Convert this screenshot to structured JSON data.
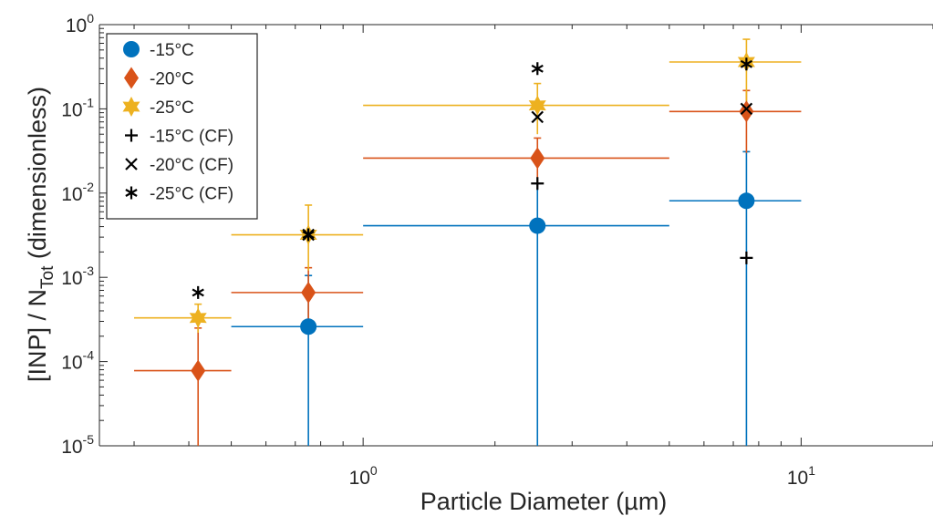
{
  "chart_data": {
    "type": "scatter",
    "xlabel": "Particle Diameter (µm)",
    "ylabel_main": "[INP] / N",
    "ylabel_sub": "Tot",
    "ylabel_tail": " (dimensionless)",
    "x_scale": "log",
    "y_scale": "log",
    "xlim": [
      0.25,
      20
    ],
    "ylim": [
      1e-05,
      1
    ],
    "x_ticks": [
      {
        "value": 1,
        "base": "10",
        "exp": "0"
      },
      {
        "value": 10,
        "base": "10",
        "exp": "1"
      }
    ],
    "y_ticks": [
      {
        "value": 1e-05,
        "base": "10",
        "exp": "-5"
      },
      {
        "value": 0.0001,
        "base": "10",
        "exp": "-4"
      },
      {
        "value": 0.001,
        "base": "10",
        "exp": "-3"
      },
      {
        "value": 0.01,
        "base": "10",
        "exp": "-2"
      },
      {
        "value": 0.1,
        "base": "10",
        "exp": "-1"
      },
      {
        "value": 1,
        "base": "10",
        "exp": "0"
      }
    ],
    "grid": false,
    "legend_position": "top-left",
    "series": [
      {
        "name": "-15°C",
        "marker": "circle",
        "color": "#0072BD",
        "points": [
          {
            "x": 0.75,
            "y": 0.00026,
            "x_err": [
              0.5,
              1.0
            ],
            "y_err": [
              1e-05,
              0.00105
            ]
          },
          {
            "x": 2.5,
            "y": 0.0041,
            "x_err": [
              1.0,
              5.0
            ],
            "y_err": [
              1e-05,
              0.013
            ]
          },
          {
            "x": 7.5,
            "y": 0.0081,
            "x_err": [
              5.0,
              10.0
            ],
            "y_err": [
              1e-05,
              0.031
            ]
          }
        ]
      },
      {
        "name": "-20°C",
        "marker": "diamond",
        "color": "#D95319",
        "points": [
          {
            "x": 0.42,
            "y": 7.8e-05,
            "x_err": [
              0.3,
              0.5
            ],
            "y_err": [
              1e-05,
              0.00025
            ]
          },
          {
            "x": 0.75,
            "y": 0.00066,
            "x_err": [
              0.5,
              1.0
            ],
            "y_err": [
              0.00026,
              0.0013
            ]
          },
          {
            "x": 2.5,
            "y": 0.026,
            "x_err": [
              1.0,
              5.0
            ],
            "y_err": [
              0.012,
              0.045
            ]
          },
          {
            "x": 7.5,
            "y": 0.093,
            "x_err": [
              5.0,
              10.0
            ],
            "y_err": [
              0.03,
              0.165
            ]
          }
        ]
      },
      {
        "name": "-25°C",
        "marker": "hexagram",
        "color": "#EDB120",
        "points": [
          {
            "x": 0.42,
            "y": 0.00033,
            "x_err": [
              0.3,
              0.5
            ],
            "y_err": [
              0.00022,
              0.00048
            ]
          },
          {
            "x": 0.75,
            "y": 0.0032,
            "x_err": [
              0.5,
              1.0
            ],
            "y_err": [
              0.0012,
              0.0072
            ]
          },
          {
            "x": 2.5,
            "y": 0.11,
            "x_err": [
              1.0,
              5.0
            ],
            "y_err": [
              0.05,
              0.2
            ]
          },
          {
            "x": 7.5,
            "y": 0.36,
            "x_err": [
              5.0,
              10.0
            ],
            "y_err": [
              0.12,
              0.67
            ]
          }
        ]
      },
      {
        "name": "-15°C (CF)",
        "marker": "plus",
        "color": "#000000",
        "points": [
          {
            "x": 2.5,
            "y": 0.013
          },
          {
            "x": 7.5,
            "y": 0.0017
          }
        ]
      },
      {
        "name": "-20°C (CF)",
        "marker": "x",
        "color": "#000000",
        "points": [
          {
            "x": 0.75,
            "y": 0.0032
          },
          {
            "x": 2.5,
            "y": 0.08
          },
          {
            "x": 7.5,
            "y": 0.1
          }
        ]
      },
      {
        "name": "-25°C (CF)",
        "marker": "asterisk",
        "color": "#000000",
        "points": [
          {
            "x": 0.42,
            "y": 0.00066
          },
          {
            "x": 0.75,
            "y": 0.0032
          },
          {
            "x": 2.5,
            "y": 0.3
          },
          {
            "x": 7.5,
            "y": 0.34
          }
        ]
      }
    ]
  }
}
